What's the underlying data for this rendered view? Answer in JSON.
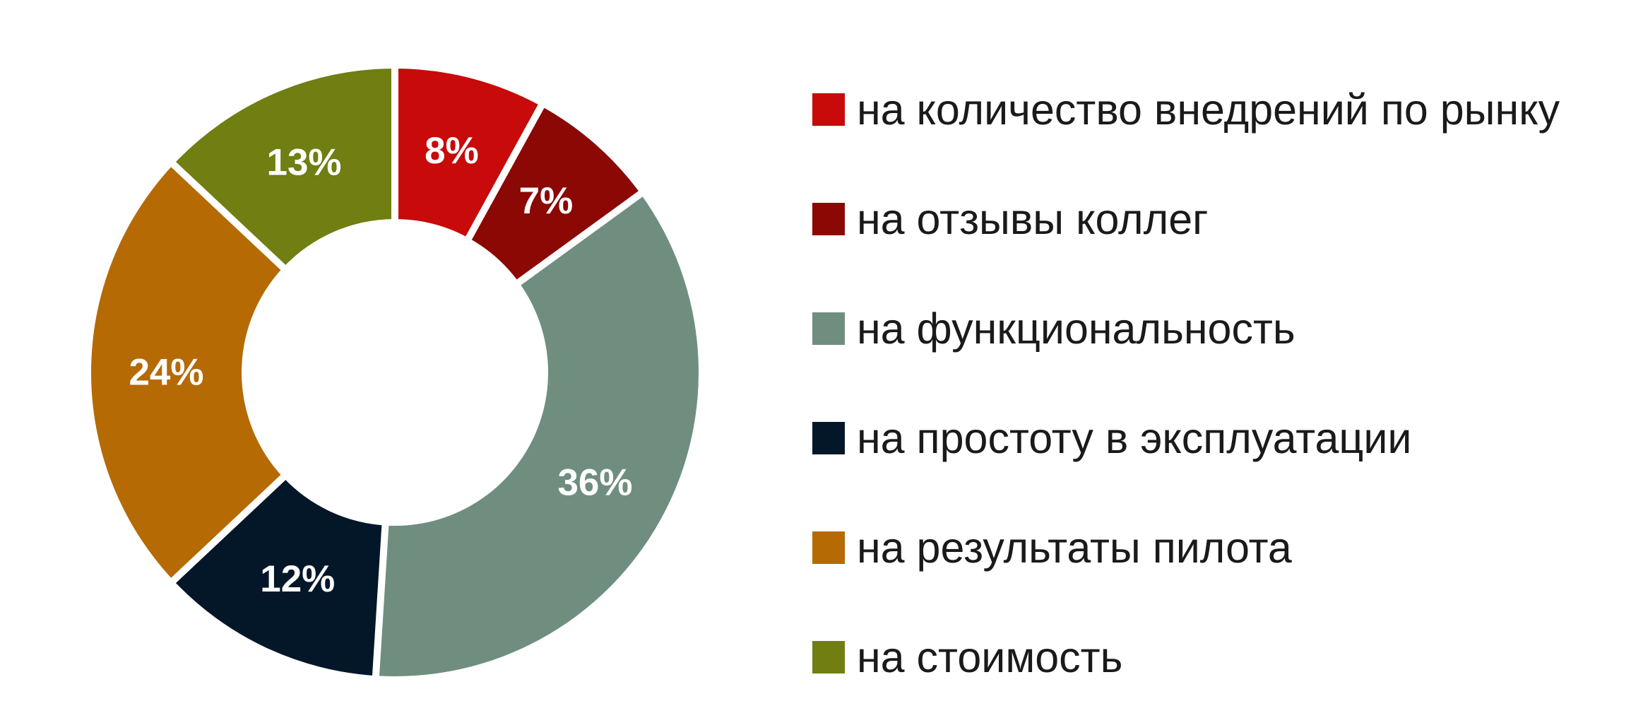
{
  "chart_data": {
    "type": "pie",
    "subtype": "donut",
    "title": "",
    "legend_position": "right",
    "data_labels": "percent",
    "label_color": "#FFFFFF",
    "gap_color": "#FFFFFF",
    "donut_hole_ratio": 0.505,
    "start_angle": "12-oclock-clockwise",
    "slices": [
      {
        "label": "на количество внедрений по рынку",
        "value": 8,
        "display": "8%",
        "color": "#C80A0A"
      },
      {
        "label": "на отзывы коллег",
        "value": 7,
        "display": "7%",
        "color": "#8B0804"
      },
      {
        "label": "на функциональность",
        "value": 36,
        "display": "36%",
        "color": "#708E80"
      },
      {
        "label": "на простоту в эксплуатации",
        "value": 12,
        "display": "12%",
        "color": "#041729"
      },
      {
        "label": "на результаты пилота",
        "value": 24,
        "display": "24%",
        "color": "#B66A04"
      },
      {
        "label": "на стоимость",
        "value": 13,
        "display": "13%",
        "color": "#707E12"
      }
    ]
  }
}
